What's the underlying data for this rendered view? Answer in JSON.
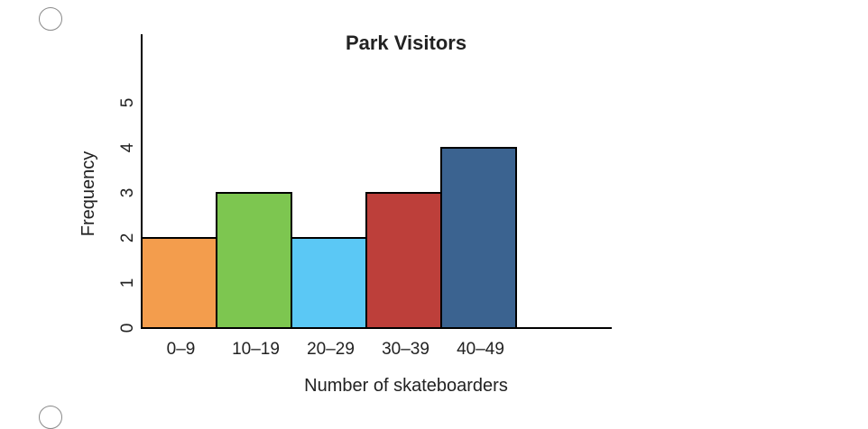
{
  "question": {
    "options": [
      {
        "state": "unselected"
      },
      {
        "state": "unselected"
      }
    ]
  },
  "chart_data": {
    "type": "bar",
    "title": "Park Visitors",
    "xlabel": "Number of skateboarders",
    "ylabel": "Frequency",
    "categories": [
      "0–9",
      "10–19",
      "20–29",
      "30–39",
      "40–49"
    ],
    "values": [
      2,
      3,
      2,
      3,
      4
    ],
    "colors": [
      "#F39D4D",
      "#7DC650",
      "#5BC8F5",
      "#BD3F3A",
      "#3B6390"
    ],
    "ylim": [
      0,
      6
    ],
    "yticks": [
      0,
      1,
      2,
      3,
      4,
      5
    ],
    "grid": false,
    "legend": "none"
  }
}
